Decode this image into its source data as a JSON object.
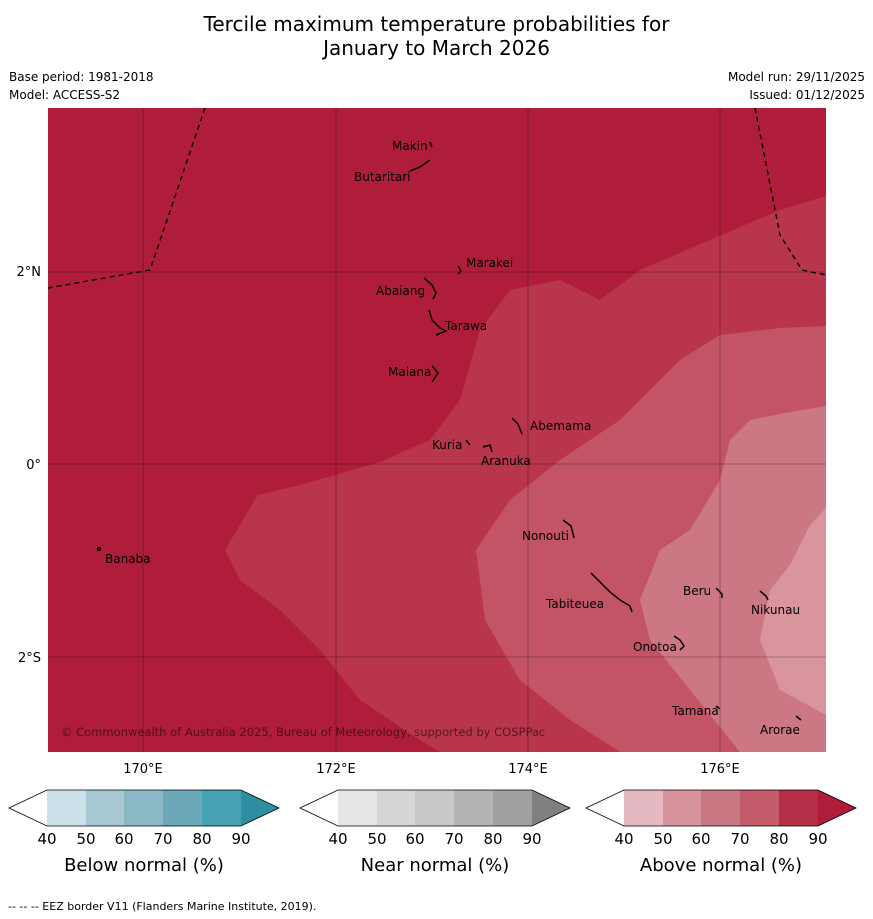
{
  "title": {
    "line1": "Tercile maximum temperature probabilities for",
    "line2": "January to March 2026"
  },
  "meta": {
    "base_period": "Base period: 1981-2018",
    "model": "Model: ACCESS-S2",
    "model_run": "Model run: 29/11/2025",
    "issued": "Issued: 01/12/2025"
  },
  "map": {
    "lon_labels": [
      "170°E",
      "172°E",
      "174°E",
      "176°E"
    ],
    "lat_labels": [
      "2°N",
      "0°",
      "2°S"
    ],
    "copyright": "© Commonwealth of Australia 2025, Bureau of Meteorology, supported by COSPPac",
    "places": [
      "Makin",
      "Butaritari",
      "Marakei",
      "Abaiang",
      "Tarawa",
      "Maiana",
      "Abemama",
      "Kuria",
      "Aranuka",
      "Nonouti",
      "Banaba",
      "Tabiteuea",
      "Beru",
      "Nikunau",
      "Onotoa",
      "Tamana",
      "Arorae"
    ]
  },
  "legend": {
    "ticks": [
      "40",
      "50",
      "60",
      "70",
      "80",
      "90"
    ],
    "below": {
      "label": "Below normal (%)",
      "colors": [
        "#ffffff",
        "#cbe2ea",
        "#a8c9d3",
        "#8bb8c5",
        "#6aa8b8",
        "#45a2b4",
        "#2e8fa3"
      ]
    },
    "near": {
      "label": "Near normal (%)",
      "colors": [
        "#ffffff",
        "#e6e6e6",
        "#d6d6d6",
        "#c8c8c8",
        "#b4b4b4",
        "#a0a0a0",
        "#808080"
      ]
    },
    "above": {
      "label": "Above normal (%)",
      "colors": [
        "#ffffff",
        "#e4b9c2",
        "#d7939e",
        "#c97783",
        "#c35b6b",
        "#b52e48",
        "#b01d3b"
      ]
    }
  },
  "colors": {
    "c90": "#b01d3b",
    "c80": "#b9354b",
    "c70": "#c35466",
    "c60": "#cc7784",
    "c50": "#d9959e"
  },
  "footer": "--  --  -- EEZ border V11 (Flanders Marine Institute, 2019)."
}
